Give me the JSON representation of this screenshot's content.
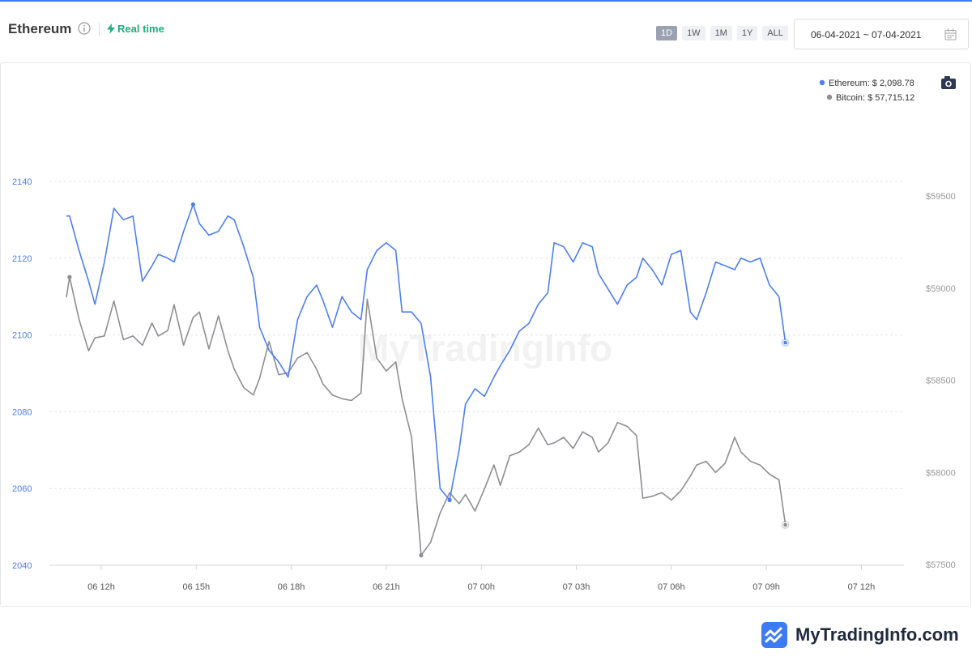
{
  "header": {
    "title": "Ethereum",
    "realtime_label": "Real time",
    "range_buttons": [
      "1D",
      "1W",
      "1M",
      "1Y",
      "ALL"
    ],
    "active_range": "1D",
    "date_range": "06-04-2021 ~ 07-04-2021"
  },
  "legend": {
    "ethereum": "Ethereum: $ 2,098.78",
    "bitcoin": "Bitcoin: $ 57,715.12"
  },
  "watermark": "MyTradingInfo",
  "brand": "MyTradingInfo.com",
  "colors": {
    "ethereum": "#4d7ef3",
    "bitcoin": "#8e8e93",
    "accent": "#3d7bf5",
    "realtime": "#18b27a"
  },
  "chart_data": {
    "type": "line",
    "x_tick_labels": [
      "06 12h",
      "06 15h",
      "06 18h",
      "06 21h",
      "07 00h",
      "07 03h",
      "07 06h",
      "07 09h",
      "07 12h"
    ],
    "y_left": {
      "ticks": [
        "2040",
        "2060",
        "2080",
        "2100",
        "2120",
        "2140"
      ],
      "range": [
        2040,
        2140
      ]
    },
    "y_right": {
      "ticks": [
        "$57500",
        "$58000",
        "$58500",
        "$59000",
        "$59500"
      ],
      "range": [
        57500,
        59500
      ]
    },
    "grid": true,
    "legend_position": "top-right",
    "series": [
      {
        "name": "Ethereum",
        "axis": "left",
        "x_hours": [
          10.9,
          11.0,
          11.3,
          11.6,
          11.8,
          12.1,
          12.4,
          12.7,
          13.0,
          13.3,
          13.6,
          13.8,
          14.1,
          14.3,
          14.6,
          14.9,
          15.1,
          15.4,
          15.7,
          16.0,
          16.2,
          16.5,
          16.8,
          17.0,
          17.3,
          17.6,
          17.9,
          18.2,
          18.5,
          18.8,
          19.0,
          19.3,
          19.6,
          19.9,
          20.2,
          20.4,
          20.7,
          21.0,
          21.3,
          21.5,
          21.8,
          22.1,
          22.4,
          22.7,
          23.0,
          23.3,
          23.5,
          23.8,
          24.1,
          24.4,
          24.6,
          24.9,
          25.2,
          25.5,
          25.8,
          26.1,
          26.3,
          26.6,
          26.9,
          27.2,
          27.5,
          27.7,
          28.0,
          28.3,
          28.6,
          28.9,
          29.1,
          29.4,
          29.7,
          30.0,
          30.3,
          30.6,
          30.8,
          31.1,
          31.4,
          31.7,
          32.0,
          32.2,
          32.5,
          32.8,
          33.1,
          33.4,
          33.6
        ],
        "values": [
          2131,
          2131,
          2122,
          2114,
          2108,
          2119,
          2133,
          2130,
          2131,
          2114,
          2118,
          2121,
          2120,
          2119,
          2127,
          2134,
          2129,
          2126,
          2127,
          2131,
          2130,
          2123,
          2115,
          2102,
          2096,
          2093,
          2089,
          2104,
          2110,
          2113,
          2109,
          2102,
          2110,
          2106,
          2104,
          2117,
          2122,
          2124,
          2122,
          2106,
          2106,
          2103,
          2089,
          2060,
          2057,
          2070,
          2082,
          2086,
          2084,
          2089,
          2092,
          2096,
          2101,
          2103,
          2108,
          2111,
          2124,
          2123,
          2119,
          2124,
          2123,
          2116,
          2112,
          2108,
          2113,
          2115,
          2120,
          2117,
          2113,
          2121,
          2122,
          2106,
          2104,
          2111,
          2119,
          2118,
          2117,
          2120,
          2119,
          2120,
          2113,
          2110,
          2098
        ]
      },
      {
        "name": "Bitcoin",
        "axis": "right",
        "x_hours": [
          10.9,
          11.0,
          11.3,
          11.6,
          11.8,
          12.1,
          12.4,
          12.7,
          13.0,
          13.3,
          13.6,
          13.8,
          14.1,
          14.3,
          14.6,
          14.9,
          15.1,
          15.4,
          15.7,
          16.0,
          16.2,
          16.5,
          16.8,
          17.0,
          17.3,
          17.6,
          17.9,
          18.2,
          18.5,
          18.8,
          19.0,
          19.3,
          19.6,
          19.9,
          20.2,
          20.4,
          20.7,
          21.0,
          21.3,
          21.5,
          21.8,
          22.1,
          22.4,
          22.7,
          23.0,
          23.3,
          23.5,
          23.8,
          24.1,
          24.4,
          24.6,
          24.9,
          25.2,
          25.5,
          25.8,
          26.1,
          26.3,
          26.6,
          26.9,
          27.2,
          27.5,
          27.7,
          28.0,
          28.3,
          28.6,
          28.9,
          29.1,
          29.4,
          29.7,
          30.0,
          30.3,
          30.6,
          30.8,
          31.1,
          31.4,
          31.7,
          32.0,
          32.2,
          32.5,
          32.8,
          33.1,
          33.4,
          33.6
        ],
        "values": [
          58950,
          59060,
          58830,
          58660,
          58730,
          58740,
          58930,
          58720,
          58740,
          58690,
          58810,
          58740,
          58770,
          58910,
          58690,
          58840,
          58870,
          58670,
          58850,
          58660,
          58560,
          58460,
          58420,
          58510,
          58710,
          58530,
          58540,
          58620,
          58650,
          58560,
          58480,
          58420,
          58400,
          58390,
          58430,
          58940,
          58620,
          58550,
          58600,
          58400,
          58190,
          57550,
          57620,
          57780,
          57890,
          57830,
          57880,
          57790,
          57910,
          58040,
          57930,
          58090,
          58110,
          58150,
          58240,
          58150,
          58160,
          58190,
          58130,
          58220,
          58190,
          58110,
          58160,
          58270,
          58250,
          58200,
          57860,
          57870,
          57890,
          57850,
          57900,
          57980,
          58040,
          58060,
          58000,
          58050,
          58190,
          58110,
          58060,
          58040,
          57990,
          57960,
          57715
        ]
      }
    ]
  }
}
